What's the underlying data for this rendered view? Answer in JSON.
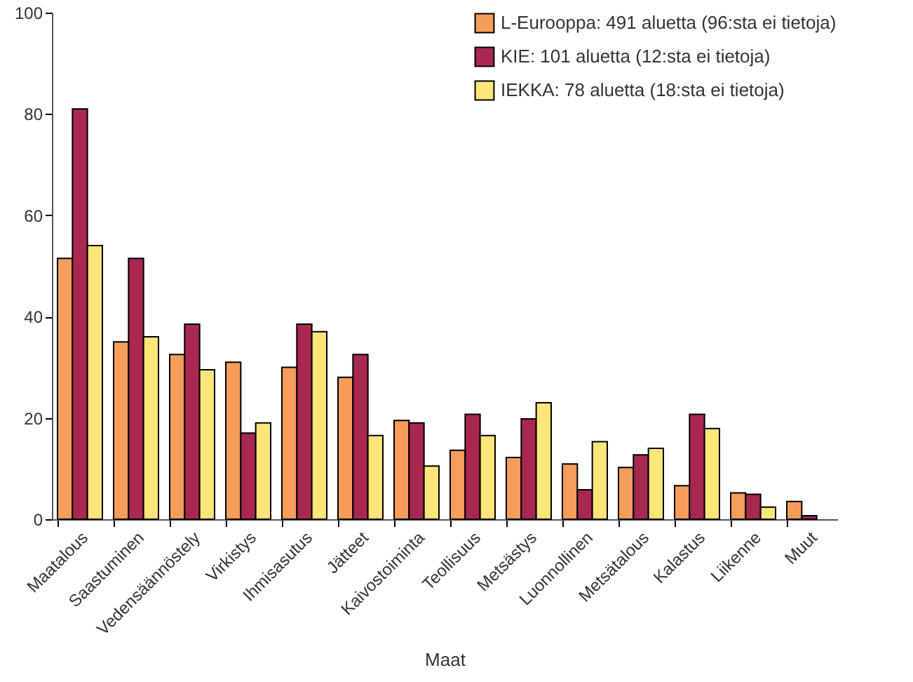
{
  "chart_data": {
    "type": "bar",
    "xlabel": "Maat",
    "categories": [
      "Maatalous",
      "Saastuminen",
      "Vedensäännöstely",
      "Virkistys",
      "Ihmisasutus",
      "Jätteet",
      "Kaivostoiminta",
      "Teollisuus",
      "Metsästys",
      "Luonnollinen",
      "Metsätalous",
      "Kalastus",
      "Liikenne",
      "Muut"
    ],
    "series": [
      {
        "name": "L-Eurooppa: 491 aluetta (96:sta ei tietoja)",
        "color": "#f59d5a",
        "values": [
          51.5,
          35,
          32.5,
          31,
          30,
          28,
          19.5,
          13.6,
          12.2,
          10.9,
          10.2,
          6.6,
          5.2,
          3.5
        ]
      },
      {
        "name": "KIE: 101 aluetta (12:sta ei tietoja)",
        "color": "#a8284f",
        "values": [
          81,
          51.5,
          38.5,
          17,
          38.5,
          32.5,
          19,
          20.7,
          19.8,
          5.8,
          12.7,
          20.7,
          4.9,
          0.7
        ]
      },
      {
        "name": "IEKKA: 78 aluetta (18:sta ei tietoja)",
        "color": "#fee57a",
        "values": [
          54,
          36,
          29.5,
          19,
          37,
          16.5,
          10.5,
          16.5,
          23,
          15.3,
          14,
          17.9,
          2.4,
          null
        ]
      }
    ],
    "ylim": [
      0,
      100
    ],
    "yticks": [
      0,
      20,
      40,
      60,
      80,
      100
    ],
    "grid": false,
    "legend": "top right"
  }
}
